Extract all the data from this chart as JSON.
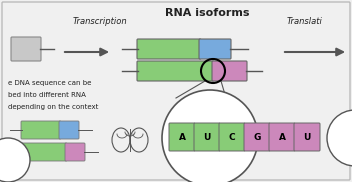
{
  "bg_color": "#f0f0f0",
  "border_color": "#aaaaaa",
  "title": "RNA isoforms",
  "transcription_label": "Transcription",
  "translation_label": "Translati",
  "green_color": "#88cc77",
  "blue_color": "#77aadd",
  "pink_color": "#cc88bb",
  "light_gray_box": "#c8c8c8",
  "dark_gray": "#555555",
  "text_color": "#222222",
  "line_color": "#555555",
  "white": "#ffffff",
  "letters": [
    "A",
    "U",
    "C",
    "G",
    "A",
    "U"
  ],
  "letter_colors": [
    "#88cc77",
    "#88cc77",
    "#88cc77",
    "#cc88bb",
    "#cc88bb",
    "#cc88bb"
  ]
}
